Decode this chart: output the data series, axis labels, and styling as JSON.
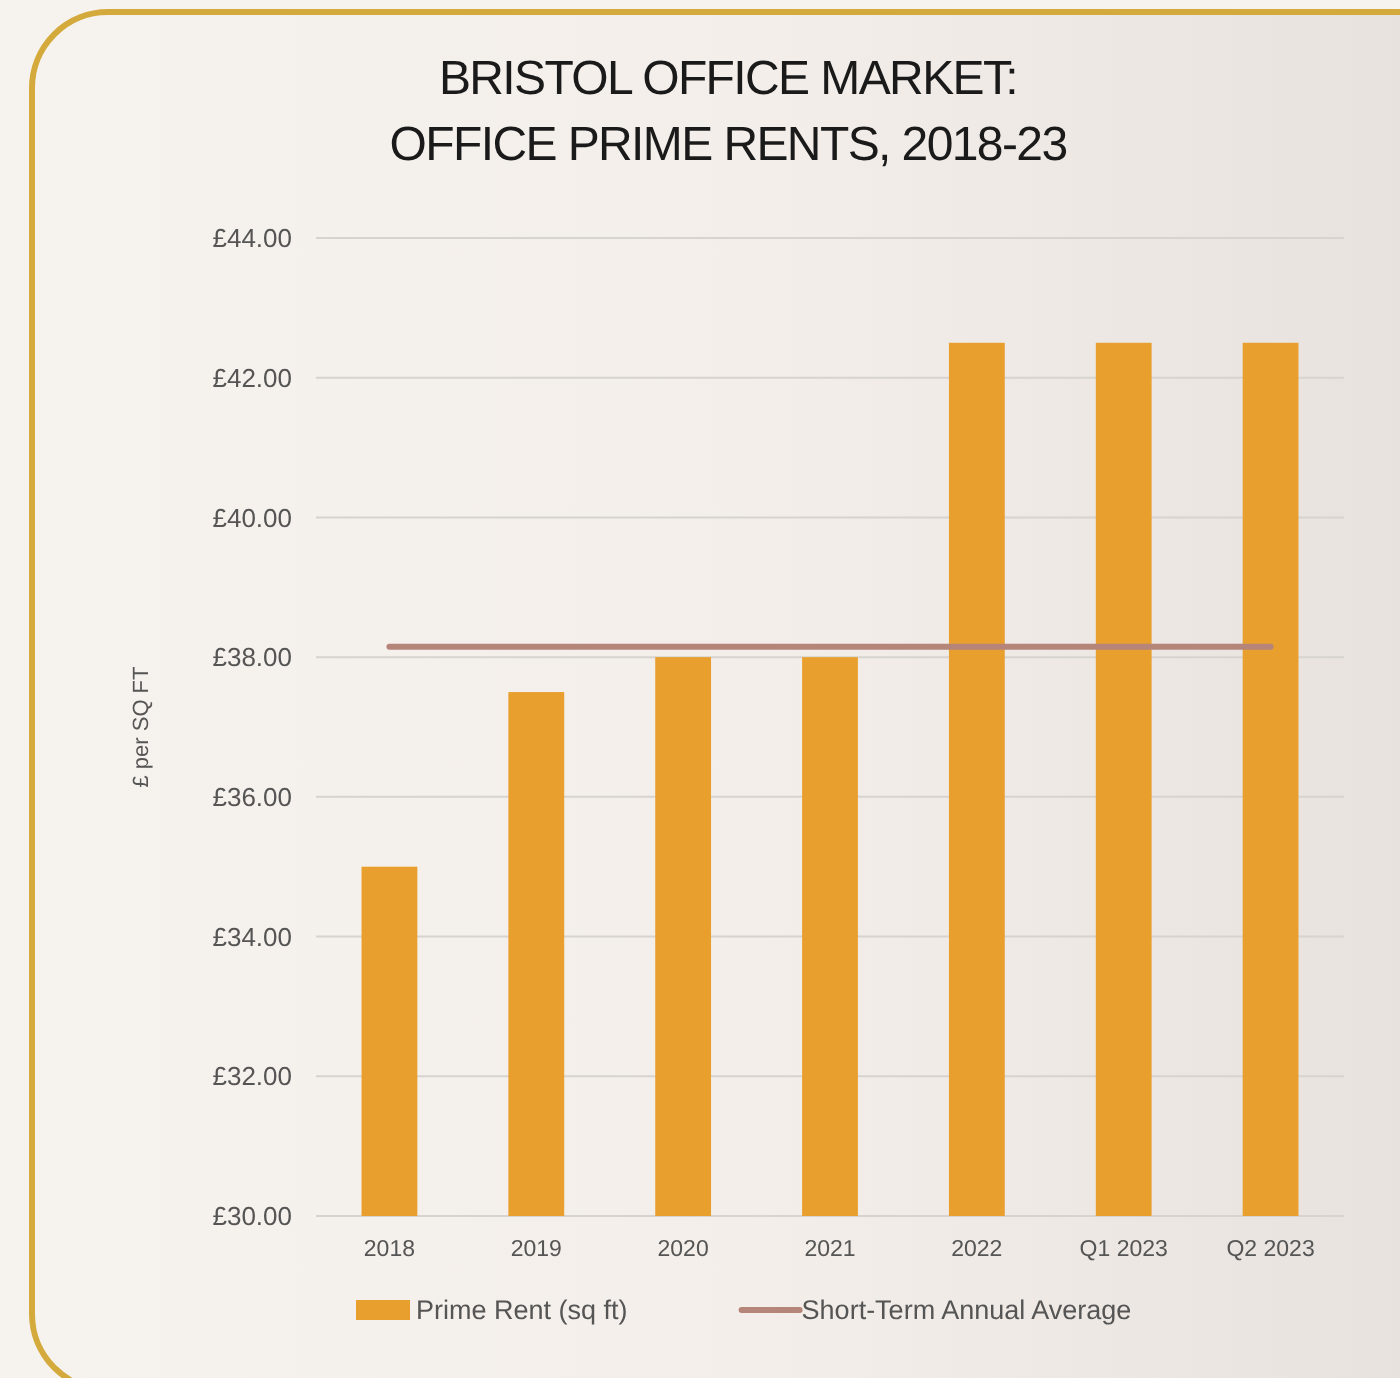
{
  "chart_data": {
    "type": "bar",
    "title": "BRISTOL OFFICE MARKET:\nOFFICE PRIME RENTS, 2018-23",
    "ylabel": "£ per SQ FT",
    "categories": [
      "2018",
      "2019",
      "2020",
      "2021",
      "2022",
      "Q1 2023",
      "Q2 2023"
    ],
    "series": [
      {
        "name": "Prime Rent (sq ft)",
        "color": "#e89f2e",
        "values": [
          35,
          37.5,
          38,
          38,
          42.5,
          42.5,
          42.5
        ]
      },
      {
        "name": "Short-Term Annual Average",
        "type": "line",
        "color": "#b5857a",
        "values": [
          38.15,
          38.15,
          38.15,
          38.15,
          38.15,
          38.15,
          38.15
        ]
      }
    ],
    "ylim": [
      30,
      44
    ],
    "yticks": [
      {
        "value": 30,
        "label": "£30.00"
      },
      {
        "value": 32,
        "label": "£32.00"
      },
      {
        "value": 34,
        "label": "£34.00"
      },
      {
        "value": 36,
        "label": "£36.00"
      },
      {
        "value": 38,
        "label": "£38.00"
      },
      {
        "value": 40,
        "label": "£40.00"
      },
      {
        "value": 42,
        "label": "£42.00"
      },
      {
        "value": 44,
        "label": "£44.00"
      }
    ],
    "grid": "y",
    "legend": "bottom"
  }
}
